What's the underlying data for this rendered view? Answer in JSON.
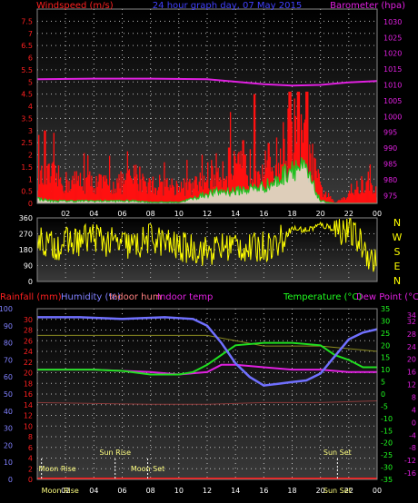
{
  "chart_data": [
    {
      "type": "area",
      "title": "24 hour graph day, 07 May 2015",
      "left_axis_label": "Windspeed (m/s)",
      "right_axis_label": "Barometer (hpa)",
      "x_ticks": [
        "02",
        "04",
        "06",
        "08",
        "10",
        "12",
        "14",
        "16",
        "18",
        "20",
        "22",
        "00"
      ],
      "left_ticks": [
        "0",
        "0.5",
        "1",
        "1.5",
        "2",
        "2.5",
        "3",
        "3.5",
        "4",
        "4.5",
        "5",
        "5.5",
        "6",
        "6.5",
        "7",
        "7.5"
      ],
      "left_range": [
        0,
        8
      ],
      "right_ticks": [
        "975",
        "980",
        "985",
        "990",
        "995",
        "1000",
        "1005",
        "1010",
        "1015",
        "1020",
        "1025",
        "1030"
      ],
      "right_range": [
        972.5,
        1034
      ],
      "gust_hourly": [
        1.2,
        1.3,
        1.0,
        1.1,
        1.0,
        0.9,
        1.0,
        1.3,
        0.9,
        0.9,
        0.8,
        0.8,
        1.3,
        1.7,
        1.6,
        1.7,
        1.8,
        2.1,
        3.5,
        2.6,
        0.7,
        0.0,
        0.5,
        0.9,
        0.6
      ],
      "gust_spikes": [
        [
          0.5,
          3.0
        ],
        [
          13.5,
          2.3
        ],
        [
          14.5,
          2.6
        ],
        [
          15.3,
          4.5
        ],
        [
          17.8,
          4.6
        ],
        [
          18.4,
          4.6
        ],
        [
          19.0,
          4.6
        ]
      ],
      "avg_hourly": [
        0.2,
        0.1,
        0.1,
        0.1,
        0.1,
        0.1,
        0.1,
        0.1,
        0.05,
        0.05,
        0.05,
        0.2,
        0.4,
        0.5,
        0.5,
        0.6,
        0.7,
        0.9,
        1.6,
        1.3,
        0.1,
        0.0,
        0.0,
        0.0,
        0.0
      ],
      "barometer": [
        [
          0,
          1011.8
        ],
        [
          4,
          1012.0
        ],
        [
          8,
          1012.0
        ],
        [
          12,
          1011.8
        ],
        [
          14,
          1011.0
        ],
        [
          16,
          1010.2
        ],
        [
          18,
          1009.8
        ],
        [
          20,
          1010.0
        ],
        [
          22,
          1010.8
        ],
        [
          24,
          1011.2
        ]
      ]
    },
    {
      "type": "scatter",
      "left_ticks": [
        "0",
        "90",
        "180",
        "270",
        "360"
      ],
      "range": [
        0,
        360
      ],
      "right_labels": [
        "N",
        "W",
        "S",
        "E",
        "N"
      ],
      "direction_hourly": [
        250,
        200,
        220,
        230,
        260,
        220,
        210,
        200,
        250,
        220,
        190,
        190,
        170,
        190,
        210,
        180,
        200,
        220,
        300,
        290,
        320,
        300,
        290,
        200,
        90
      ]
    },
    {
      "type": "line",
      "left_label_rain": "Rainfall (mm)",
      "left_label_humidity": "Humidity (%)",
      "label_indoor_hum": "Indoor hum",
      "label_indoor_temp": "Indoor temp",
      "right_label_temp": "Temperature (°C)",
      "right_label_dew": "Dew Point (°C)",
      "rain_ticks": [
        "0",
        "2",
        "4",
        "6",
        "8",
        "10",
        "12",
        "14",
        "16",
        "18",
        "20",
        "22",
        "24",
        "26",
        "28",
        "30"
      ],
      "humidity_ticks": [
        "0",
        "10",
        "20",
        "30",
        "40",
        "50",
        "60",
        "70",
        "80",
        "90",
        "100"
      ],
      "temp_ticks": [
        "-35",
        "-30",
        "-25",
        "-20",
        "-15",
        "-10",
        "-5",
        "0",
        "5",
        "10",
        "15",
        "20",
        "25",
        "30",
        "35"
      ],
      "dew_ticks": [
        "-16",
        "-12",
        "-8",
        "-4",
        "0",
        "4",
        "8",
        "12",
        "16",
        "20",
        "24",
        "28",
        "32",
        "34"
      ],
      "x_ticks": [
        "Moon Rise",
        "02",
        "04",
        "06",
        "08",
        "10",
        "12",
        "14",
        "16",
        "18",
        "20",
        "Sun Set",
        "22",
        "00"
      ],
      "humidity": [
        [
          0,
          95
        ],
        [
          3,
          95
        ],
        [
          6,
          94
        ],
        [
          9,
          95
        ],
        [
          11,
          94
        ],
        [
          12,
          90
        ],
        [
          13,
          80
        ],
        [
          14,
          68
        ],
        [
          15,
          60
        ],
        [
          16,
          55
        ],
        [
          17,
          56
        ],
        [
          18,
          57
        ],
        [
          19,
          58
        ],
        [
          20,
          62
        ],
        [
          21,
          72
        ],
        [
          22,
          82
        ],
        [
          23,
          86
        ],
        [
          24,
          88
        ]
      ],
      "temperature": [
        [
          0,
          10
        ],
        [
          2,
          10
        ],
        [
          4,
          10
        ],
        [
          6,
          9.5
        ],
        [
          8,
          8
        ],
        [
          10,
          8
        ],
        [
          11,
          9
        ],
        [
          12,
          12
        ],
        [
          13,
          16
        ],
        [
          14,
          20
        ],
        [
          16,
          21
        ],
        [
          18,
          21
        ],
        [
          20,
          20
        ],
        [
          21,
          16
        ],
        [
          22,
          14
        ],
        [
          23,
          11
        ],
        [
          24,
          11
        ]
      ],
      "dew_point": [
        [
          0,
          10
        ],
        [
          4,
          10
        ],
        [
          8,
          9
        ],
        [
          10,
          8
        ],
        [
          12,
          9
        ],
        [
          13,
          12
        ],
        [
          14,
          12
        ],
        [
          16,
          11
        ],
        [
          18,
          10
        ],
        [
          20,
          10
        ],
        [
          22,
          9
        ],
        [
          24,
          9
        ]
      ],
      "indoor_hum": [
        [
          0,
          45
        ],
        [
          8,
          44
        ],
        [
          12,
          44
        ],
        [
          16,
          45
        ],
        [
          20,
          45
        ],
        [
          24,
          46
        ]
      ],
      "indoor_temp": [
        [
          0,
          27
        ],
        [
          12,
          27
        ],
        [
          14,
          26
        ],
        [
          16,
          25
        ],
        [
          20,
          25
        ],
        [
          24,
          24
        ]
      ],
      "rain_total": 0,
      "events": [
        {
          "label": "Moon Rise",
          "hour": 0.3
        },
        {
          "label": "Sun Rise",
          "hour": 5.5
        },
        {
          "label": "Moon Set",
          "hour": 7.8
        },
        {
          "label": "Sun Set",
          "hour": 21.2
        }
      ]
    }
  ]
}
